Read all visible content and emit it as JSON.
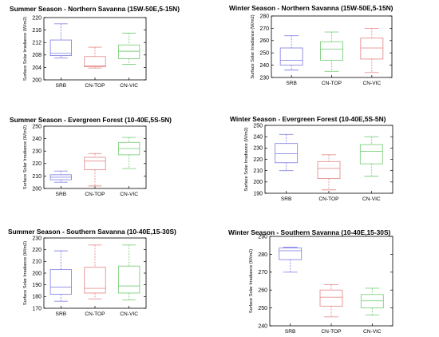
{
  "chart_data": [
    {
      "type": "box",
      "title": "Summer Season - Northern Savanna (15W-50E,5-15N)",
      "ylabel": "Surface Solar Irradiance (W/m2)",
      "ylim": [
        200,
        220
      ],
      "yticks": [
        200,
        204,
        208,
        212,
        216,
        220
      ],
      "categories": [
        "SRB",
        "CN-TOP",
        "CN-VIC"
      ],
      "colors": [
        "#8a8ae6",
        "#e69090",
        "#80d080"
      ],
      "boxes": [
        {
          "min": 207,
          "q1": 207.8,
          "median": 208.5,
          "q3": 212.8,
          "max": 218
        },
        {
          "min": 203.8,
          "q1": 204.2,
          "median": 204.5,
          "q3": 207.5,
          "max": 210.5
        },
        {
          "min": 205,
          "q1": 206.8,
          "median": 209.2,
          "q3": 211.2,
          "max": 215
        }
      ]
    },
    {
      "type": "box",
      "title": "Winter Season - Northern Savanna (15W-50E,5-15N)",
      "ylabel": "Surface Solar Irradiance (W/m2)",
      "ylim": [
        230,
        280
      ],
      "yticks": [
        230,
        240,
        250,
        260,
        270,
        280
      ],
      "categories": [
        "SRB",
        "CN-TOP",
        "CN-VIC"
      ],
      "colors": [
        "#8a8ae6",
        "#80d080",
        "#e69090"
      ],
      "boxes": [
        {
          "min": 236,
          "q1": 240,
          "median": 244,
          "q3": 254,
          "max": 264
        },
        {
          "min": 235,
          "q1": 244,
          "median": 253,
          "q3": 259,
          "max": 267
        },
        {
          "min": 234,
          "q1": 245,
          "median": 254,
          "q3": 262,
          "max": 270
        }
      ]
    },
    {
      "type": "box",
      "title": "Summer Season - Evergreen Forest (10-40E,5S-5N)",
      "ylabel": "Surface Solar Irradiance (W/m2)",
      "ylim": [
        200,
        250
      ],
      "yticks": [
        200,
        210,
        220,
        230,
        240,
        250
      ],
      "categories": [
        "SRB",
        "CN-TOP",
        "CN-VIC"
      ],
      "colors": [
        "#8a8ae6",
        "#e69090",
        "#80d080"
      ],
      "boxes": [
        {
          "min": 205,
          "q1": 207,
          "median": 209,
          "q3": 211,
          "max": 214
        },
        {
          "min": 202,
          "q1": 215,
          "median": 222,
          "q3": 225,
          "max": 228
        },
        {
          "min": 216,
          "q1": 227,
          "median": 232,
          "q3": 237,
          "max": 241
        }
      ]
    },
    {
      "type": "box",
      "title": "Winter Season - Evergreen Forest (10-40E,5S-5N)",
      "ylabel": "Surface Solar Irradiance (W/m2)",
      "ylim": [
        190,
        250
      ],
      "yticks": [
        190,
        200,
        210,
        220,
        230,
        240,
        250
      ],
      "categories": [
        "SRB",
        "CN-TOP",
        "CN-VIC"
      ],
      "colors": [
        "#8a8ae6",
        "#e69090",
        "#80d080"
      ],
      "boxes": [
        {
          "min": 210,
          "q1": 217,
          "median": 225,
          "q3": 234,
          "max": 242
        },
        {
          "min": 193,
          "q1": 203,
          "median": 212,
          "q3": 218,
          "max": 224
        },
        {
          "min": 205,
          "q1": 216,
          "median": 227,
          "q3": 233,
          "max": 240
        }
      ]
    },
    {
      "type": "box",
      "title": "Summer Season - Southern Savanna (10-40E,15-30S)",
      "ylabel": "Surface Solar Irradiance (W/m2)",
      "ylim": [
        170,
        230
      ],
      "yticks": [
        170,
        180,
        190,
        200,
        210,
        220,
        230
      ],
      "categories": [
        "SRB",
        "CN-TOP",
        "CN-VIC"
      ],
      "colors": [
        "#8a8ae6",
        "#e69090",
        "#80d080"
      ],
      "boxes": [
        {
          "min": 176,
          "q1": 182,
          "median": 188,
          "q3": 203,
          "max": 219
        },
        {
          "min": 178,
          "q1": 183,
          "median": 187,
          "q3": 205,
          "max": 224
        },
        {
          "min": 177,
          "q1": 183,
          "median": 189,
          "q3": 206,
          "max": 224
        }
      ]
    },
    {
      "type": "box",
      "title": "Winter Season - Southern Savanna (10-40E,15-30S)",
      "ylabel": "Surface Solar Irradiance (W/m2)",
      "ylim": [
        240,
        290
      ],
      "yticks": [
        240,
        250,
        260,
        270,
        280,
        290
      ],
      "categories": [
        "SRB",
        "CN-TOP",
        "CN-VIC"
      ],
      "colors": [
        "#8a8ae6",
        "#e69090",
        "#80d080"
      ],
      "boxes": [
        {
          "min": 270,
          "q1": 277,
          "median": 282,
          "q3": 283.5,
          "max": 284
        },
        {
          "min": 245,
          "q1": 251,
          "median": 256,
          "q3": 260,
          "max": 263
        },
        {
          "min": 246,
          "q1": 250,
          "median": 254,
          "q3": 257.5,
          "max": 261
        }
      ]
    }
  ]
}
